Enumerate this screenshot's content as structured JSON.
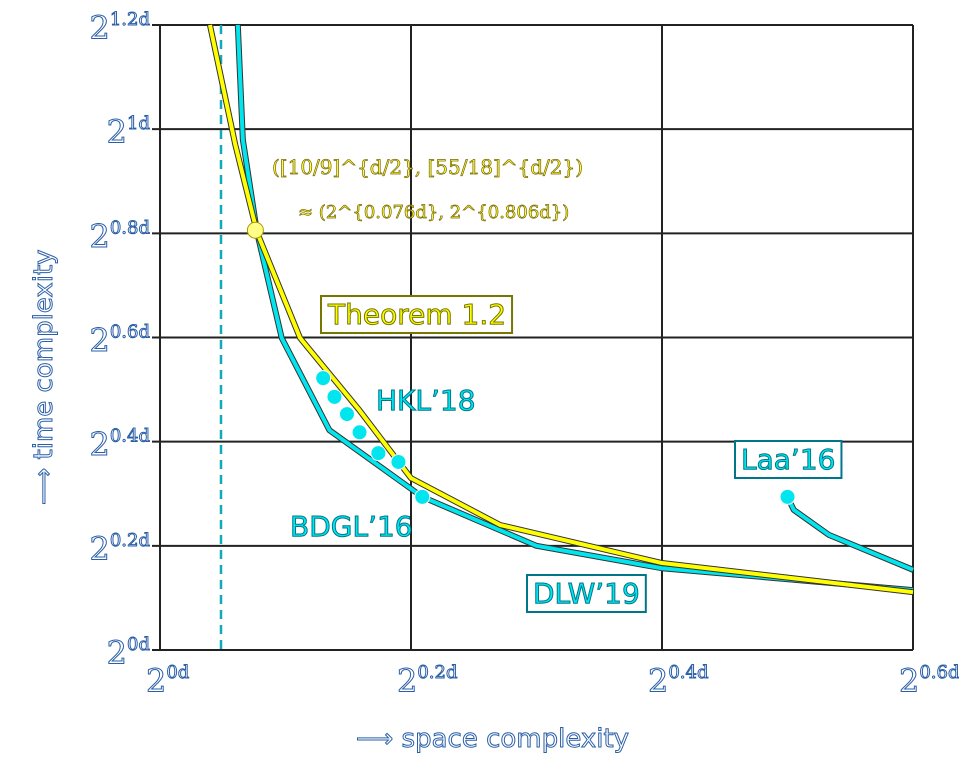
{
  "chart_data": {
    "type": "line",
    "xlabel": "⟶ space complexity",
    "ylabel": "⟶ time complexity",
    "xlim": [
      0,
      0.6
    ],
    "ylim": [
      0,
      1.2
    ],
    "x_ticks": [
      "0d",
      "0.2d",
      "0.4d",
      "0.6d"
    ],
    "y_ticks": [
      "0d",
      "0.2d",
      "0.4d",
      "0.6d",
      "0.8d",
      "1d",
      "1.2d"
    ],
    "grid": true,
    "colors": {
      "theorem": "#ffff00",
      "prior": "#00e5ee",
      "grid": "#222222"
    },
    "series": [
      {
        "name": "Theorem 1.2",
        "color": "#ffff00",
        "x": [
          0.0398,
          0.06,
          0.0773,
          0.1116,
          0.159,
          0.2,
          0.271,
          0.4,
          0.6
        ],
        "y": [
          1.2,
          0.97,
          0.802,
          0.599,
          0.46,
          0.33,
          0.24,
          0.167,
          0.111
        ]
      },
      {
        "name": "DLW'19",
        "color": "#00e5ee",
        "x": [
          0.062,
          0.066,
          0.0773,
          0.097,
          0.135,
          0.209,
          0.3,
          0.4,
          0.6
        ],
        "y": [
          1.2,
          0.98,
          0.802,
          0.599,
          0.422,
          0.294,
          0.2,
          0.157,
          0.115
        ]
      },
      {
        "name": "Laa'16",
        "color": "#00e5ee",
        "x": [
          0.5,
          0.505,
          0.533,
          0.6
        ],
        "y": [
          0.294,
          0.269,
          0.221,
          0.154
        ]
      }
    ],
    "points": [
      {
        "name": "HKL'18",
        "x": [
          0.13,
          0.139,
          0.149,
          0.159,
          0.174,
          0.19
        ],
        "y": [
          0.522,
          0.486,
          0.453,
          0.418,
          0.378,
          0.361
        ]
      },
      {
        "name": "BDGL'16",
        "x": [
          0.209
        ],
        "y": [
          0.294
        ]
      },
      {
        "name": "Laa'16",
        "x": [
          0.5
        ],
        "y": [
          0.294
        ]
      }
    ],
    "intersection": {
      "x": 0.076,
      "y": 0.806
    },
    "dashed_vertical_x": 0.0486,
    "annotations": {
      "line1": "([10/9]^{d/2}, [55/18]^{d/2})",
      "line2": "≈ (2^{0.076d}, 2^{0.806d})"
    },
    "labels": {
      "theorem": "Theorem 1.2",
      "hkl": "HKL’18",
      "bdgl": "BDGL’16",
      "dlw": "DLW’19",
      "laa": "Laa’16"
    }
  }
}
